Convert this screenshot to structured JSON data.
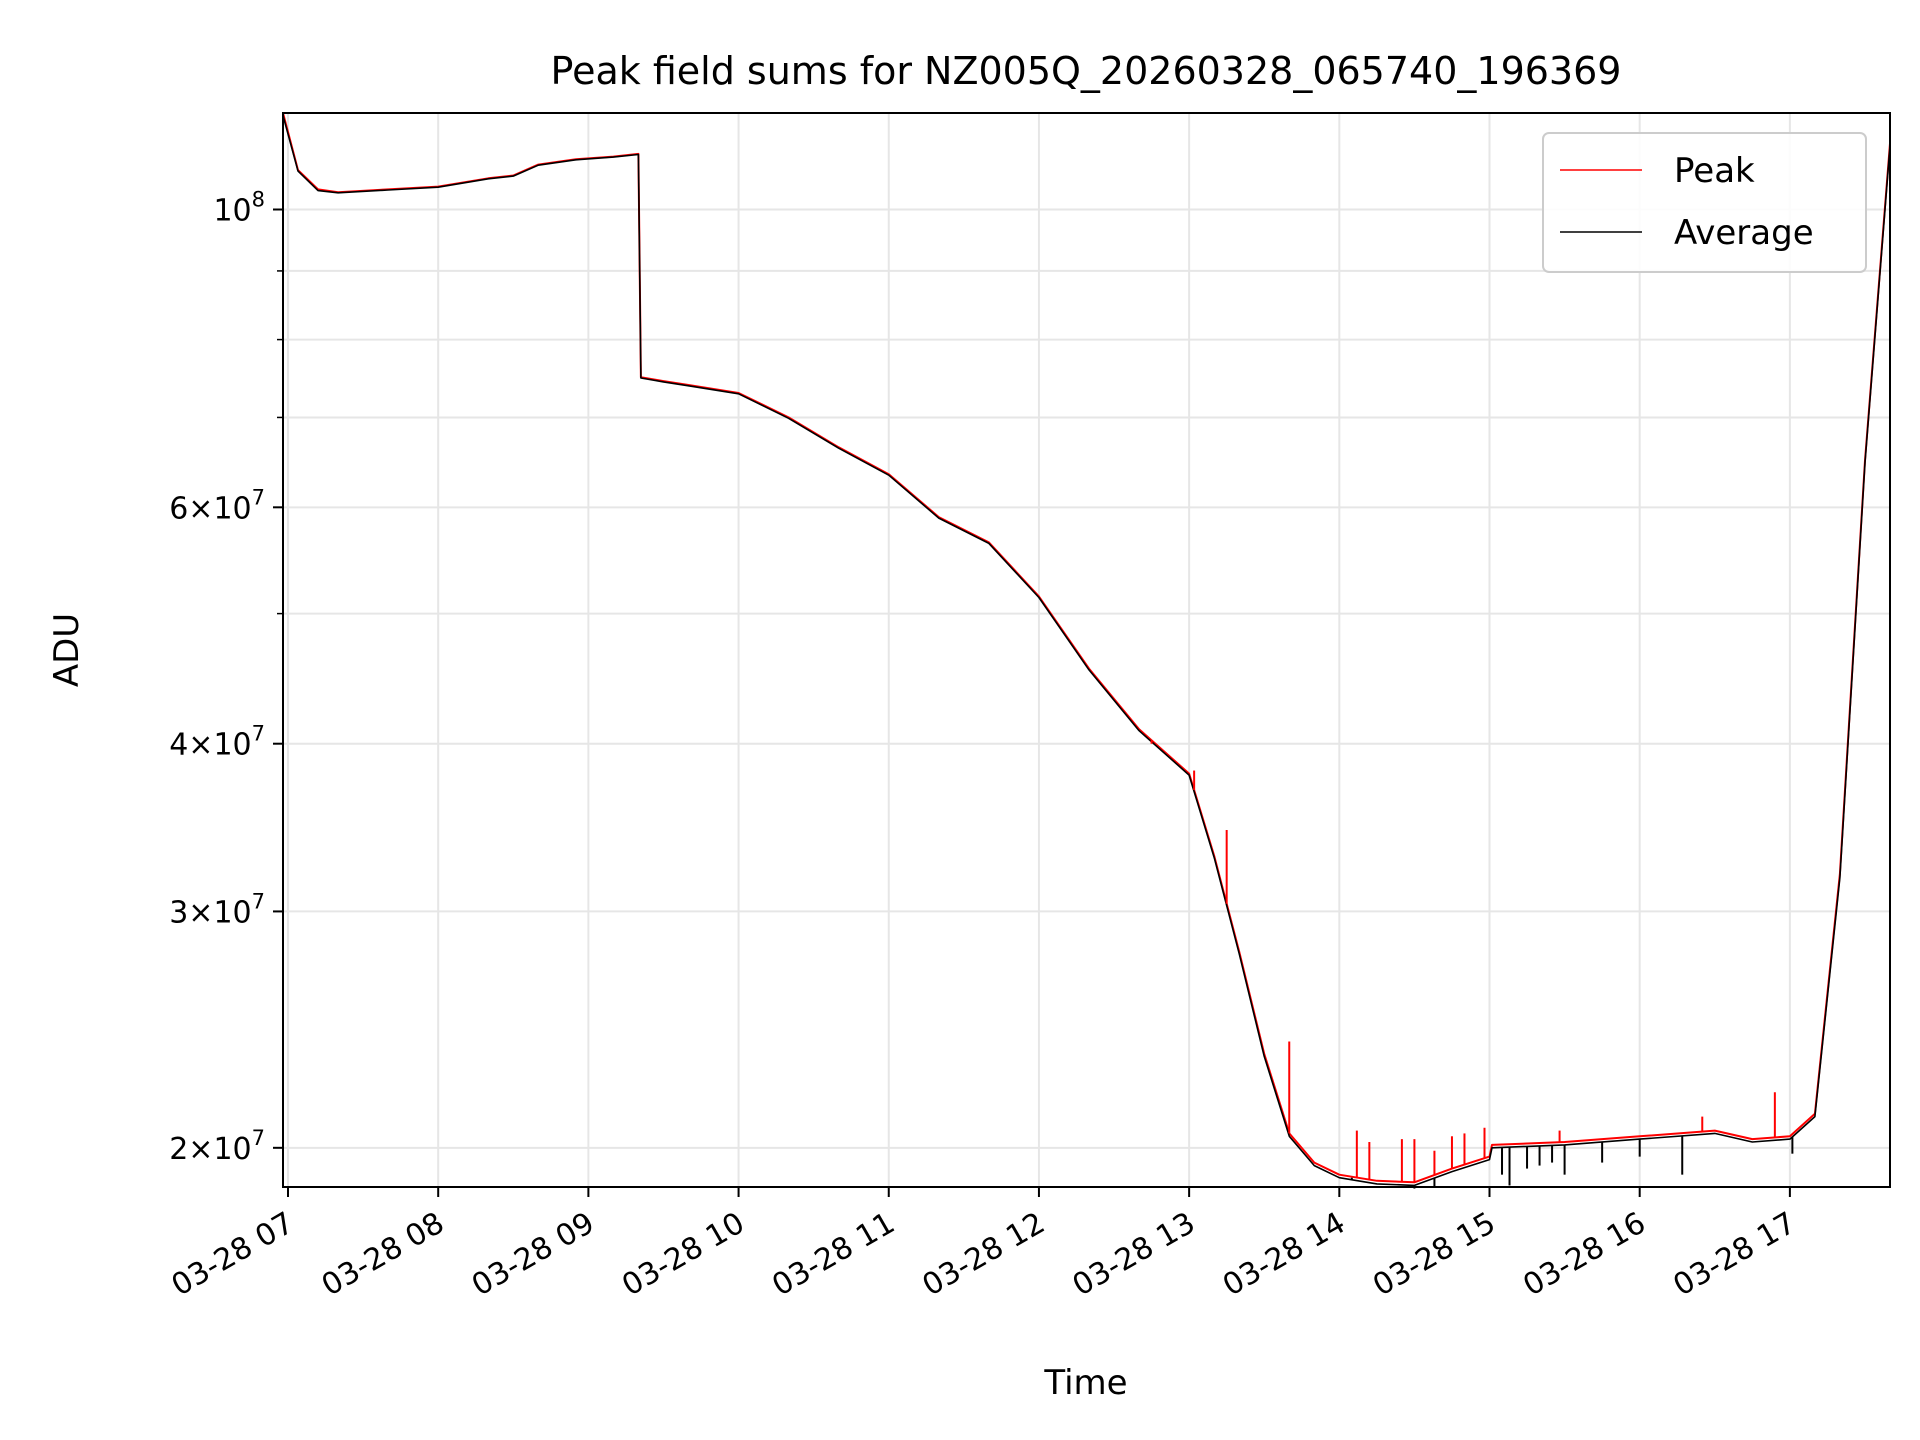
{
  "chart_data": {
    "type": "line",
    "title": "Peak field sums for NZ005Q_20260328_065740_196369",
    "xlabel": "Time",
    "ylabel": "ADU",
    "y_scale": "log",
    "ylim": [
      18700000,
      118000000
    ],
    "xlim": [
      "2026-03-28 06:58",
      "2026-03-28 17:40"
    ],
    "grid": true,
    "legend_position": "top-right",
    "x_ticks": [
      {
        "t": "2026-03-28 07:00",
        "label": "03-28 07"
      },
      {
        "t": "2026-03-28 08:00",
        "label": "03-28 08"
      },
      {
        "t": "2026-03-28 09:00",
        "label": "03-28 09"
      },
      {
        "t": "2026-03-28 10:00",
        "label": "03-28 10"
      },
      {
        "t": "2026-03-28 11:00",
        "label": "03-28 11"
      },
      {
        "t": "2026-03-28 12:00",
        "label": "03-28 12"
      },
      {
        "t": "2026-03-28 13:00",
        "label": "03-28 13"
      },
      {
        "t": "2026-03-28 14:00",
        "label": "03-28 14"
      },
      {
        "t": "2026-03-28 15:00",
        "label": "03-28 15"
      },
      {
        "t": "2026-03-28 16:00",
        "label": "03-28 16"
      },
      {
        "t": "2026-03-28 17:00",
        "label": "03-28 17"
      }
    ],
    "y_ticks": [
      {
        "value": 100000000,
        "mantissa": "",
        "base": "10",
        "exp": "8"
      },
      {
        "value": 60000000,
        "mantissa": "6×",
        "base": "10",
        "exp": "7"
      },
      {
        "value": 40000000,
        "mantissa": "4×",
        "base": "10",
        "exp": "7"
      },
      {
        "value": 30000000,
        "mantissa": "3×",
        "base": "10",
        "exp": "7"
      },
      {
        "value": 20000000,
        "mantissa": "2×",
        "base": "10",
        "exp": "7"
      }
    ],
    "y_minor_ticks": [
      90000000,
      80000000,
      70000000,
      50000000
    ],
    "series": [
      {
        "name": "Peak",
        "color": "#ff0000",
        "x": [
          "2026-03-28 06:58",
          "2026-03-28 07:04",
          "2026-03-28 07:12",
          "2026-03-28 07:20",
          "2026-03-28 07:40",
          "2026-03-28 08:00",
          "2026-03-28 08:20",
          "2026-03-28 08:30",
          "2026-03-28 08:40",
          "2026-03-28 08:55",
          "2026-03-28 09:10",
          "2026-03-28 09:20",
          "2026-03-28 09:21",
          "2026-03-28 09:30",
          "2026-03-28 09:40",
          "2026-03-28 10:00",
          "2026-03-28 10:20",
          "2026-03-28 10:40",
          "2026-03-28 11:00",
          "2026-03-28 11:20",
          "2026-03-28 11:40",
          "2026-03-28 12:00",
          "2026-03-28 12:20",
          "2026-03-28 12:40",
          "2026-03-28 13:00",
          "2026-03-28 13:10",
          "2026-03-28 13:20",
          "2026-03-28 13:30",
          "2026-03-28 13:40",
          "2026-03-28 13:50",
          "2026-03-28 14:00",
          "2026-03-28 14:15",
          "2026-03-28 14:30",
          "2026-03-28 14:45",
          "2026-03-28 15:00",
          "2026-03-28 15:01",
          "2026-03-28 15:30",
          "2026-03-28 16:00",
          "2026-03-28 16:30",
          "2026-03-28 16:45",
          "2026-03-28 17:00",
          "2026-03-28 17:10",
          "2026-03-28 17:20",
          "2026-03-28 17:30",
          "2026-03-28 17:40"
        ],
        "y": [
          118000000,
          107000000,
          103500000,
          103000000,
          103500000,
          104000000,
          105500000,
          106000000,
          108000000,
          109000000,
          109500000,
          110000000,
          75000000,
          74500000,
          74000000,
          73000000,
          70000000,
          66500000,
          63500000,
          59000000,
          56500000,
          51500000,
          45500000,
          41000000,
          38000000,
          33000000,
          28000000,
          23500000,
          20500000,
          19500000,
          19100000,
          18900000,
          18850000,
          19300000,
          19700000,
          20100000,
          20200000,
          20400000,
          20600000,
          20300000,
          20400000,
          21200000,
          32000000,
          65000000,
          112000000
        ]
      },
      {
        "name": "Average",
        "color": "#000000",
        "x": [
          "2026-03-28 06:58",
          "2026-03-28 07:04",
          "2026-03-28 07:12",
          "2026-03-28 07:20",
          "2026-03-28 07:40",
          "2026-03-28 08:00",
          "2026-03-28 08:20",
          "2026-03-28 08:30",
          "2026-03-28 08:40",
          "2026-03-28 08:55",
          "2026-03-28 09:10",
          "2026-03-28 09:20",
          "2026-03-28 09:21",
          "2026-03-28 09:30",
          "2026-03-28 09:40",
          "2026-03-28 10:00",
          "2026-03-28 10:20",
          "2026-03-28 10:40",
          "2026-03-28 11:00",
          "2026-03-28 11:20",
          "2026-03-28 11:40",
          "2026-03-28 12:00",
          "2026-03-28 12:20",
          "2026-03-28 12:40",
          "2026-03-28 13:00",
          "2026-03-28 13:10",
          "2026-03-28 13:20",
          "2026-03-28 13:30",
          "2026-03-28 13:40",
          "2026-03-28 13:50",
          "2026-03-28 14:00",
          "2026-03-28 14:15",
          "2026-03-28 14:30",
          "2026-03-28 14:45",
          "2026-03-28 15:00",
          "2026-03-28 15:01",
          "2026-03-28 15:30",
          "2026-03-28 16:00",
          "2026-03-28 16:30",
          "2026-03-28 16:45",
          "2026-03-28 17:00",
          "2026-03-28 17:10",
          "2026-03-28 17:20",
          "2026-03-28 17:30",
          "2026-03-28 17:40"
        ],
        "y": [
          117500000,
          106800000,
          103300000,
          102900000,
          103400000,
          103900000,
          105400000,
          105900000,
          107900000,
          108900000,
          109400000,
          109900000,
          74900000,
          74400000,
          73900000,
          72900000,
          69900000,
          66400000,
          63400000,
          58900000,
          56400000,
          51400000,
          45400000,
          40900000,
          37900000,
          32900000,
          27900000,
          23400000,
          20400000,
          19400000,
          19000000,
          18800000,
          18750000,
          19200000,
          19600000,
          20000000,
          20100000,
          20300000,
          20500000,
          20200000,
          20300000,
          21100000,
          31800000,
          64800000,
          111500000
        ]
      }
    ],
    "peak_spikes": [
      {
        "x": "2026-03-28 12:45",
        "y": 40000000
      },
      {
        "x": "2026-03-28 13:02",
        "y": 38200000
      },
      {
        "x": "2026-03-28 13:15",
        "y": 34500000
      },
      {
        "x": "2026-03-28 13:40",
        "y": 24000000
      },
      {
        "x": "2026-03-28 14:07",
        "y": 20600000
      },
      {
        "x": "2026-03-28 14:12",
        "y": 20200000
      },
      {
        "x": "2026-03-28 14:25",
        "y": 20300000
      },
      {
        "x": "2026-03-28 14:30",
        "y": 20300000
      },
      {
        "x": "2026-03-28 14:38",
        "y": 19900000
      },
      {
        "x": "2026-03-28 14:45",
        "y": 20400000
      },
      {
        "x": "2026-03-28 14:50",
        "y": 20500000
      },
      {
        "x": "2026-03-28 14:58",
        "y": 20700000
      },
      {
        "x": "2026-03-28 15:28",
        "y": 20600000
      },
      {
        "x": "2026-03-28 16:25",
        "y": 21100000
      },
      {
        "x": "2026-03-28 16:54",
        "y": 22000000
      }
    ],
    "average_dips": [
      {
        "x": "2026-03-28 14:05",
        "y": 19000000
      },
      {
        "x": "2026-03-28 14:30",
        "y": 18650000
      },
      {
        "x": "2026-03-28 14:38",
        "y": 18700000
      },
      {
        "x": "2026-03-28 15:05",
        "y": 19100000
      },
      {
        "x": "2026-03-28 15:08",
        "y": 18750000
      },
      {
        "x": "2026-03-28 15:15",
        "y": 19300000
      },
      {
        "x": "2026-03-28 15:20",
        "y": 19400000
      },
      {
        "x": "2026-03-28 15:25",
        "y": 19500000
      },
      {
        "x": "2026-03-28 15:30",
        "y": 19100000
      },
      {
        "x": "2026-03-28 15:45",
        "y": 19500000
      },
      {
        "x": "2026-03-28 16:00",
        "y": 19700000
      },
      {
        "x": "2026-03-28 16:17",
        "y": 19100000
      },
      {
        "x": "2026-03-28 17:01",
        "y": 19800000
      }
    ]
  }
}
